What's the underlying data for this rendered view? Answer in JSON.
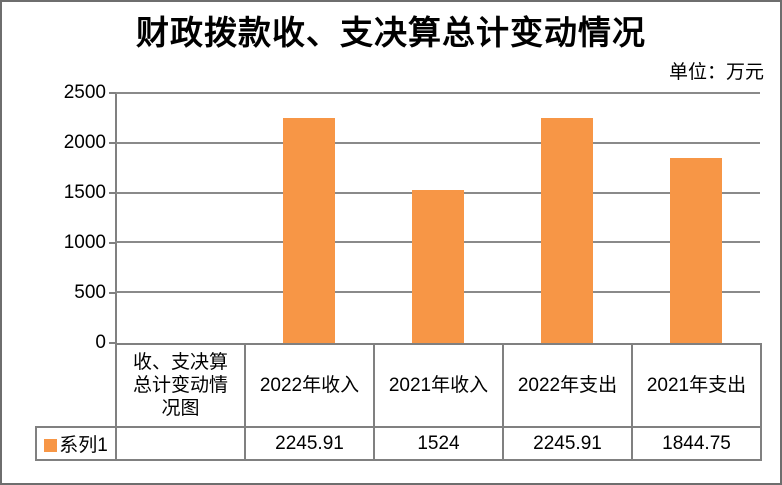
{
  "header": {
    "title": "财政拨款收、支决算总计变动情况",
    "unit_label": "单位：万元"
  },
  "legend": {
    "label": "系列1"
  },
  "chart_data": {
    "type": "bar",
    "title": "财政拨款收、支决算总计变动情况",
    "unit": "万元",
    "categories": [
      "收、支决算总计变动情况图",
      "2022年收入",
      "2021年收入",
      "2022年支出",
      "2021年支出"
    ],
    "series": [
      {
        "name": "系列1",
        "values": [
          null,
          2245.91,
          1524,
          2245.91,
          1844.75
        ]
      }
    ],
    "display_values": [
      "",
      "2245.91",
      "1524",
      "2245.91",
      "1844.75"
    ],
    "ylim": [
      0,
      2500
    ],
    "yticks": [
      0,
      500,
      1000,
      1500,
      2000,
      2500
    ],
    "grid": true,
    "legend_position": "bottom-left data table",
    "data_table_shown": true
  },
  "colors": {
    "bar": "#F79646",
    "gridline": "#8A8A8A",
    "border": "#808080",
    "frame": "#6E6E6E",
    "text": "#000000"
  }
}
